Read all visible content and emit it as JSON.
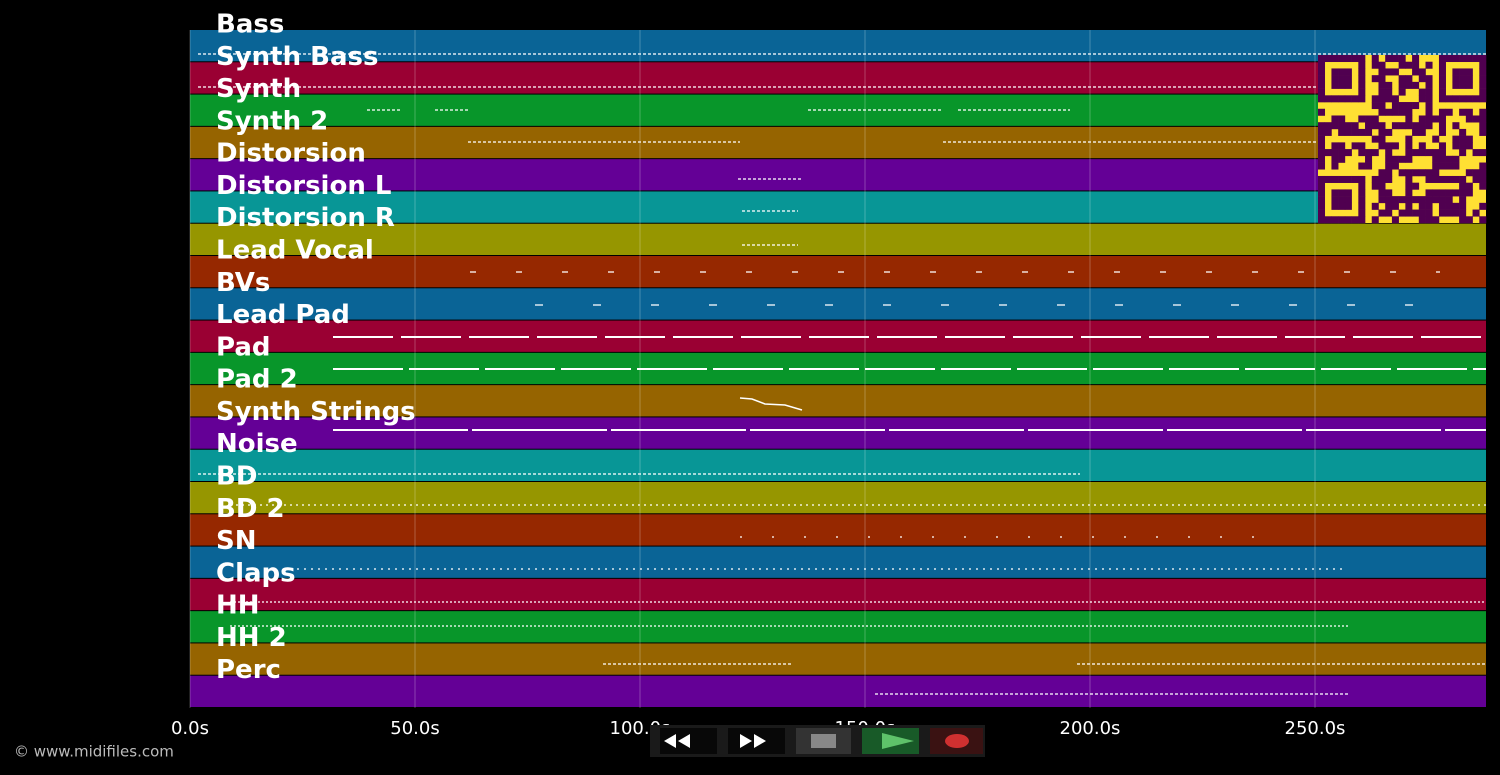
{
  "tracks": [
    "Bass",
    "Synth Bass",
    "Synth",
    "Synth 2",
    "Distorsion",
    "Distorsion L",
    "Distorsion R",
    "Lead Vocal",
    "BVs",
    "Lead Pad",
    "Pad",
    "Pad 2",
    "Synth Strings",
    "Noise",
    "BD",
    "BD 2",
    "SN",
    "Claps",
    "HH",
    "HH 2",
    "Perc"
  ],
  "x_axis": {
    "xlim": [
      0,
      288
    ],
    "ticks": [
      {
        "value": 0,
        "label": "0.0s"
      },
      {
        "value": 50,
        "label": "50.0s"
      },
      {
        "value": 100,
        "label": "100.0s"
      },
      {
        "value": 150,
        "label": "150.0s"
      },
      {
        "value": 200,
        "label": "200.0s"
      },
      {
        "value": 250,
        "label": "250.0s"
      }
    ]
  },
  "footer": "© www.midifiles.com"
}
